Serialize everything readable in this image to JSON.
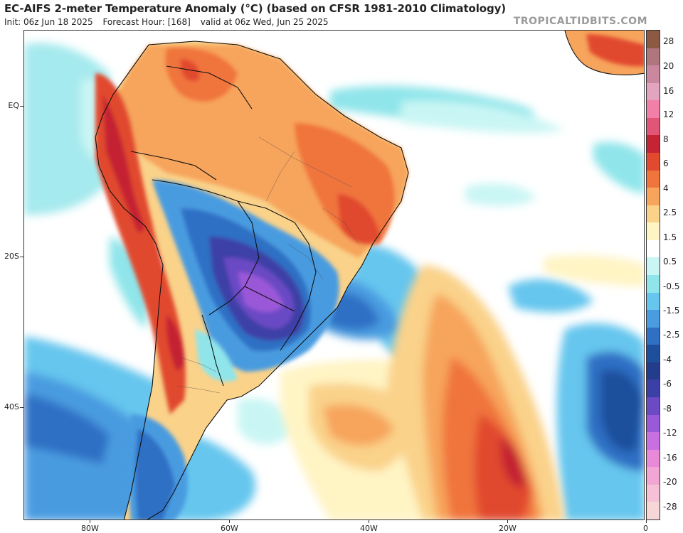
{
  "header": {
    "title": "EC-AIFS 2-meter Temperature Anomaly (°C) (based on CFSR 1981-2010 Climatology)",
    "init": "Init: 06z Jun 18 2025",
    "forecast_hour": "Forecast Hour: [168]",
    "valid": "valid at 06z Wed, Jun 25 2025",
    "watermark": "TROPICALTIDBITS.COM"
  },
  "axes": {
    "lat_labels": [
      "EQ",
      "20S",
      "40S"
    ],
    "lon_labels": [
      "80W",
      "60W",
      "40W",
      "20W",
      "0"
    ]
  },
  "colorbar": {
    "labels": [
      "28",
      "20",
      "16",
      "12",
      "8",
      "6",
      "4",
      "2.5",
      "1.5",
      "0.5",
      "-0.5",
      "-1.5",
      "-2.5",
      "-4",
      "-6",
      "-8",
      "-12",
      "-16",
      "-20",
      "-28"
    ],
    "colors": [
      "#8c5a42",
      "#b0757d",
      "#c9889e",
      "#e3a4bf",
      "#f27fa7",
      "#e15577",
      "#c42433",
      "#e14a2e",
      "#f0753d",
      "#f7a45c",
      "#fad28a",
      "#fff4c4",
      "#ffffff",
      "#c9f6f4",
      "#8fe5ea",
      "#66c6ee",
      "#4a9be0",
      "#2f6fc4",
      "#1d4f9c",
      "#233c8c",
      "#3c3fa6",
      "#6b4ac4",
      "#9a59d8",
      "#c86fe2",
      "#e98ad8",
      "#f2a6d4",
      "#f6c1d6",
      "#f7d6d8"
    ]
  },
  "colors": {
    "warm": "#e8644a",
    "cold": "#7a4bd0",
    "ocean_neutral": "#ffffff"
  }
}
